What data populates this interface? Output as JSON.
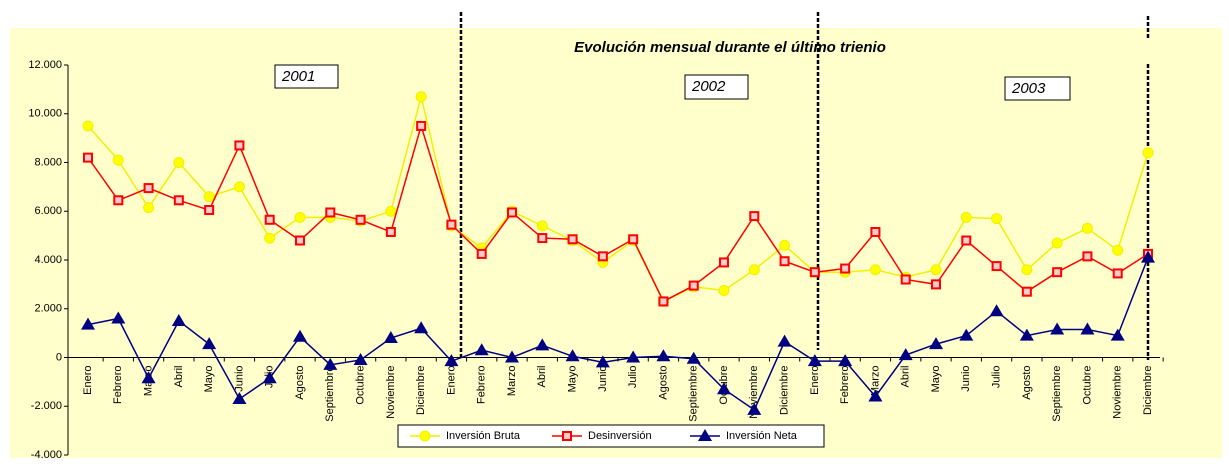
{
  "chart_data": {
    "type": "line",
    "title": "Evolución mensual durante el último trienio",
    "annotations": [
      "2001",
      "2002",
      "2003"
    ],
    "categories": [
      "Enero",
      "Febrero",
      "Marzo",
      "Abril",
      "Mayo",
      "Junio",
      "Julio",
      "Agosto",
      "Septiembre",
      "Octubre",
      "Noviembre",
      "Diciembre",
      "Enero",
      "Febrero",
      "Marzo",
      "Abril",
      "Mayo",
      "Junio",
      "Julio",
      "Agosto",
      "Septiembre",
      "Octubre",
      "Noviembre",
      "Diciembre",
      "Enero",
      "Febrero",
      "Marzo",
      "Abril",
      "Mayo",
      "Junio",
      "Julio",
      "Agosto",
      "Septiembre",
      "Octubre",
      "Noviembre",
      "Diciembre"
    ],
    "series": [
      {
        "name": "Inversión Bruta",
        "color": "#f0f000",
        "marker": "circle",
        "values": [
          9500,
          8100,
          6150,
          8000,
          6600,
          7000,
          4900,
          5750,
          5750,
          5600,
          6000,
          10700,
          5400,
          4500,
          6000,
          5400,
          4800,
          3900,
          4800,
          2300,
          2900,
          2750,
          3600,
          4600,
          3500,
          3500,
          3600,
          3300,
          3600,
          5750,
          5700,
          3600,
          4700,
          5300,
          4400,
          8400
        ]
      },
      {
        "name": "Desinversión",
        "color": "#ff0000",
        "marker": "square",
        "values": [
          8200,
          6450,
          6950,
          6450,
          6050,
          8700,
          5650,
          4800,
          5950,
          5650,
          5150,
          9500,
          5450,
          4250,
          5950,
          4900,
          4850,
          4150,
          4850,
          2300,
          2950,
          3900,
          5800,
          3950,
          3500,
          3650,
          5150,
          3200,
          3000,
          4800,
          3750,
          2700,
          3500,
          4150,
          3450,
          4250
        ]
      },
      {
        "name": "Inversión Neta",
        "color": "#000080",
        "marker": "triangle",
        "values": [
          1350,
          1600,
          -850,
          1500,
          550,
          -1700,
          -850,
          850,
          -300,
          -100,
          800,
          1200,
          -150,
          300,
          0,
          500,
          50,
          -200,
          0,
          50,
          -50,
          -1300,
          -2150,
          650,
          -150,
          -150,
          -1600,
          100,
          550,
          900,
          1900,
          900,
          1150,
          1150,
          900,
          4100
        ]
      }
    ],
    "ylim": [
      -4000,
      12000
    ],
    "yticks": [
      {
        "value": -4000,
        "label": "-4.000"
      },
      {
        "value": -2000,
        "label": "-2.000"
      },
      0,
      {
        "value": 2000,
        "label": "2.000"
      },
      {
        "value": 4000,
        "label": "4.000"
      },
      {
        "value": 6000,
        "label": "6.000"
      },
      {
        "value": 8000,
        "label": "8.000"
      },
      {
        "value": 10000,
        "label": "10.000"
      },
      {
        "value": 12000,
        "label": "12.000"
      }
    ],
    "legend": "bottom"
  }
}
